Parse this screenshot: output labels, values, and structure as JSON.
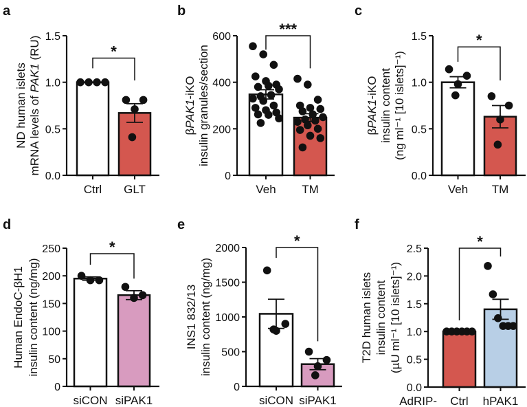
{
  "chart_data": [
    {
      "panel": "a",
      "type": "bar",
      "ylabel": [
        [
          {
            "t": "ND human islets"
          }
        ],
        [
          {
            "t": "mRNA  levels of "
          },
          {
            "t": "PAK1",
            "i": true
          },
          {
            "t": " (RU)"
          }
        ]
      ],
      "ylim": [
        0,
        1.5
      ],
      "yticks": [
        "0.0",
        "0.5",
        "1.0",
        "1.5"
      ],
      "ytick_values": [
        0,
        0.5,
        1.0,
        1.5
      ],
      "categories": [
        "Ctrl",
        "GLT"
      ],
      "bars": [
        {
          "name": "Ctrl",
          "mean": 1.0,
          "sem": 0,
          "color": "#ffffff",
          "points": [
            1,
            1,
            1,
            1
          ]
        },
        {
          "name": "GLT",
          "mean": 0.67,
          "sem": 0.1,
          "color": "#d4574f",
          "points": [
            0.81,
            0.81,
            0.71,
            0.41
          ]
        }
      ],
      "significance": {
        "label": "*",
        "bracket_y": 1.26,
        "left_end": 1.15,
        "right_end": 1.02
      }
    },
    {
      "panel": "b",
      "type": "bar",
      "ylabel": [
        [
          {
            "t": "β"
          },
          {
            "t": "PAK1",
            "i": true
          },
          {
            "t": "-iKO"
          }
        ],
        [
          {
            "t": "insulin granules/section"
          }
        ]
      ],
      "ylim": [
        0,
        600
      ],
      "yticks": [
        "0",
        "200",
        "400",
        "600"
      ],
      "ytick_values": [
        0,
        200,
        400,
        600
      ],
      "categories": [
        "Veh",
        "TM"
      ],
      "bars": [
        {
          "name": "Veh",
          "mean": 348,
          "sem": 20,
          "color": "#ffffff",
          "points": [
            555,
            520,
            475,
            425,
            405,
            390,
            380,
            385,
            370,
            340,
            345,
            330,
            320,
            300,
            290,
            280,
            270,
            262,
            260,
            245,
            225
          ]
        },
        {
          "name": "TM",
          "mean": 248,
          "sem": 17,
          "color": "#d4574f",
          "points": [
            415,
            390,
            325,
            300,
            290,
            285,
            275,
            262,
            250,
            240,
            235,
            230,
            215,
            200,
            195,
            170,
            160,
            120
          ]
        }
      ],
      "significance": {
        "label": "***",
        "bracket_y": 600,
        "left_end": 540,
        "right_end": 460
      }
    },
    {
      "panel": "c",
      "type": "bar",
      "ylabel": [
        [
          {
            "t": "β"
          },
          {
            "t": "PAK1",
            "i": true
          },
          {
            "t": "-iKO"
          }
        ],
        [
          {
            "t": "insulin content"
          }
        ],
        [
          {
            "t": "(ng ml⁻¹ [10 islets]⁻¹)"
          }
        ]
      ],
      "ylim": [
        0,
        1.5
      ],
      "yticks": [
        "0.0",
        "0.5",
        "1.0",
        "1.5"
      ],
      "ytick_values": [
        0,
        0.5,
        1.0,
        1.5
      ],
      "categories": [
        "Veh",
        "TM"
      ],
      "bars": [
        {
          "name": "Veh",
          "mean": 1.0,
          "sem": 0.06,
          "color": "#ffffff",
          "points": [
            1.14,
            1.07,
            0.98,
            0.86
          ]
        },
        {
          "name": "TM",
          "mean": 0.63,
          "sem": 0.12,
          "color": "#d4574f",
          "points": [
            0.85,
            0.75,
            0.6,
            0.33
          ]
        }
      ],
      "significance": {
        "label": "*",
        "bracket_y": 1.38,
        "left_end": 1.22,
        "right_end": 1.02
      }
    },
    {
      "panel": "d",
      "type": "bar",
      "ylabel": [
        [
          {
            "t": "Human EndoC-βH1"
          }
        ],
        [
          {
            "t": "insulin content (ng/mg)"
          }
        ]
      ],
      "ylim": [
        0,
        250
      ],
      "yticks": [
        "0",
        "50",
        "100",
        "150",
        "200",
        "250"
      ],
      "ytick_values": [
        0,
        50,
        100,
        150,
        200,
        250
      ],
      "categories": [
        "siCON",
        "siPAK1"
      ],
      "bars": [
        {
          "name": "siCON",
          "mean": 195,
          "sem": 3,
          "color": "#ffffff",
          "points": [
            200,
            192,
            192
          ]
        },
        {
          "name": "siPAK1",
          "mean": 165,
          "sem": 8,
          "color": "#d89bbf",
          "points": [
            180,
            165,
            160
          ]
        }
      ],
      "significance": {
        "label": "*",
        "bracket_y": 240,
        "left_end": 220,
        "right_end": 195
      }
    },
    {
      "panel": "e",
      "type": "bar",
      "ylabel": [
        [
          {
            "t": "INS1 832/13"
          }
        ],
        [
          {
            "t": "insulin content (ng/mg)"
          }
        ]
      ],
      "ylim": [
        0,
        2000
      ],
      "yticks": [
        "0",
        "500",
        "1000",
        "1500",
        "2000"
      ],
      "ytick_values": [
        0,
        500,
        1000,
        1500,
        2000
      ],
      "categories": [
        "siCON",
        "siPAK1"
      ],
      "bars": [
        {
          "name": "siCON",
          "mean": 1045,
          "sem": 210,
          "color": "#ffffff",
          "points": [
            1670,
            900,
            800,
            820
          ]
        },
        {
          "name": "siPAK1",
          "mean": 320,
          "sem": 80,
          "color": "#d89bbf",
          "points": [
            500,
            380,
            290,
            160
          ]
        }
      ],
      "significance": {
        "label": "*",
        "bracket_y": 2000,
        "left_end": 1850,
        "right_end": 650
      }
    },
    {
      "panel": "f",
      "type": "bar",
      "ylabel": [
        [
          {
            "t": "T2D human islets"
          }
        ],
        [
          {
            "t": "insulin content"
          }
        ],
        [
          {
            "t": "(µU ml⁻¹ [10 islets]⁻¹)"
          }
        ]
      ],
      "ylim": [
        0,
        2.5
      ],
      "yticks": [
        "0.0",
        "0.5",
        "1.0",
        "1.5",
        "2.0",
        "2.5"
      ],
      "ytick_values": [
        0,
        0.5,
        1.0,
        1.5,
        2.0,
        2.5
      ],
      "xprefix": "AdRIP-",
      "categories": [
        "Ctrl",
        "hPAK1"
      ],
      "bars": [
        {
          "name": "Ctrl",
          "mean": 1.0,
          "sem": 0,
          "color": "#d4574f",
          "points": [
            1,
            1,
            1,
            1,
            1,
            1
          ]
        },
        {
          "name": "hPAK1",
          "mean": 1.4,
          "sem": 0.18,
          "color": "#b8cfe6",
          "points": [
            2.18,
            1.67,
            1.24,
            1.1,
            1.1,
            1.1
          ]
        }
      ],
      "significance": {
        "label": "*",
        "bracket_y": 2.5,
        "left_end": 1.2,
        "right_end": 2.35
      }
    }
  ]
}
